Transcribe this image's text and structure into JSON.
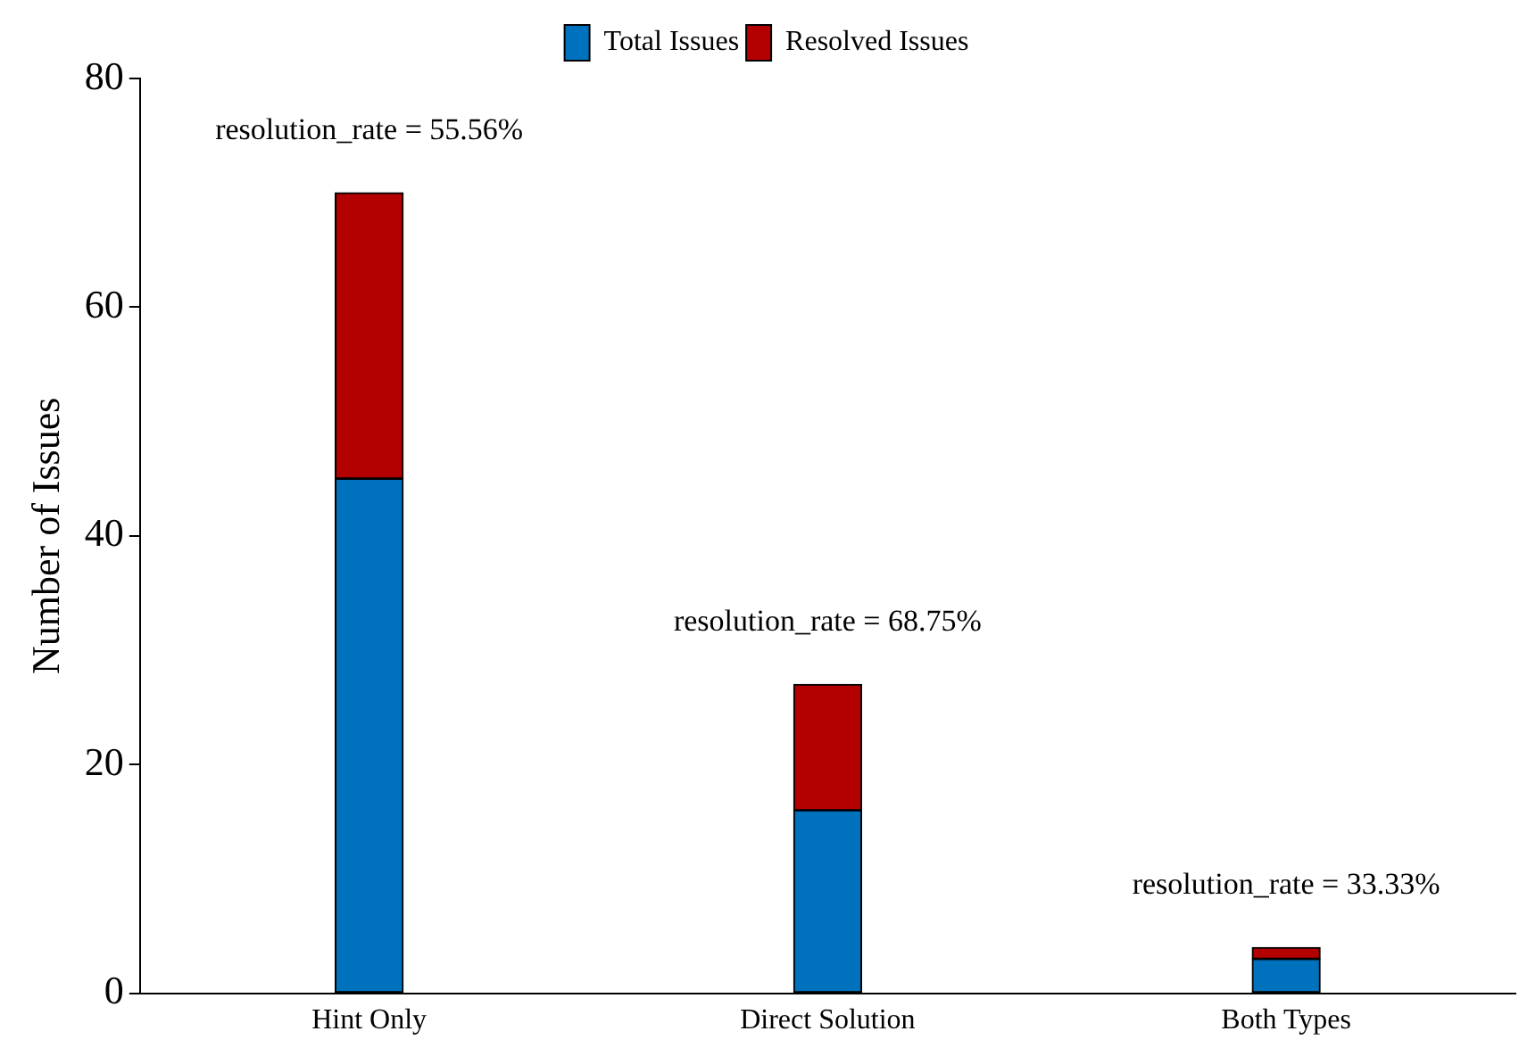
{
  "chart_data": {
    "type": "bar",
    "stacked": true,
    "ylabel": "Number of Issues",
    "categories": [
      "Hint Only",
      "Direct Solution",
      "Both Types"
    ],
    "series": [
      {
        "name": "Total Issues",
        "color": "#0072bd",
        "values": [
          45,
          16,
          3
        ]
      },
      {
        "name": "Resolved Issues",
        "color": "#b30000",
        "values": [
          25,
          11,
          1
        ]
      }
    ],
    "ylim": [
      0,
      80
    ],
    "yticks": [
      0,
      20,
      40,
      60,
      80
    ],
    "grid": false,
    "legend": "top",
    "annotations": [
      {
        "text": "resolution_rate = 55.56%",
        "x": "Hint Only",
        "y": 70
      },
      {
        "text": "resolution_rate = 68.75%",
        "x": "Direct Solution",
        "y": 27
      },
      {
        "text": "resolution_rate = 33.33%",
        "x": "Both Types",
        "y": 4
      }
    ]
  }
}
